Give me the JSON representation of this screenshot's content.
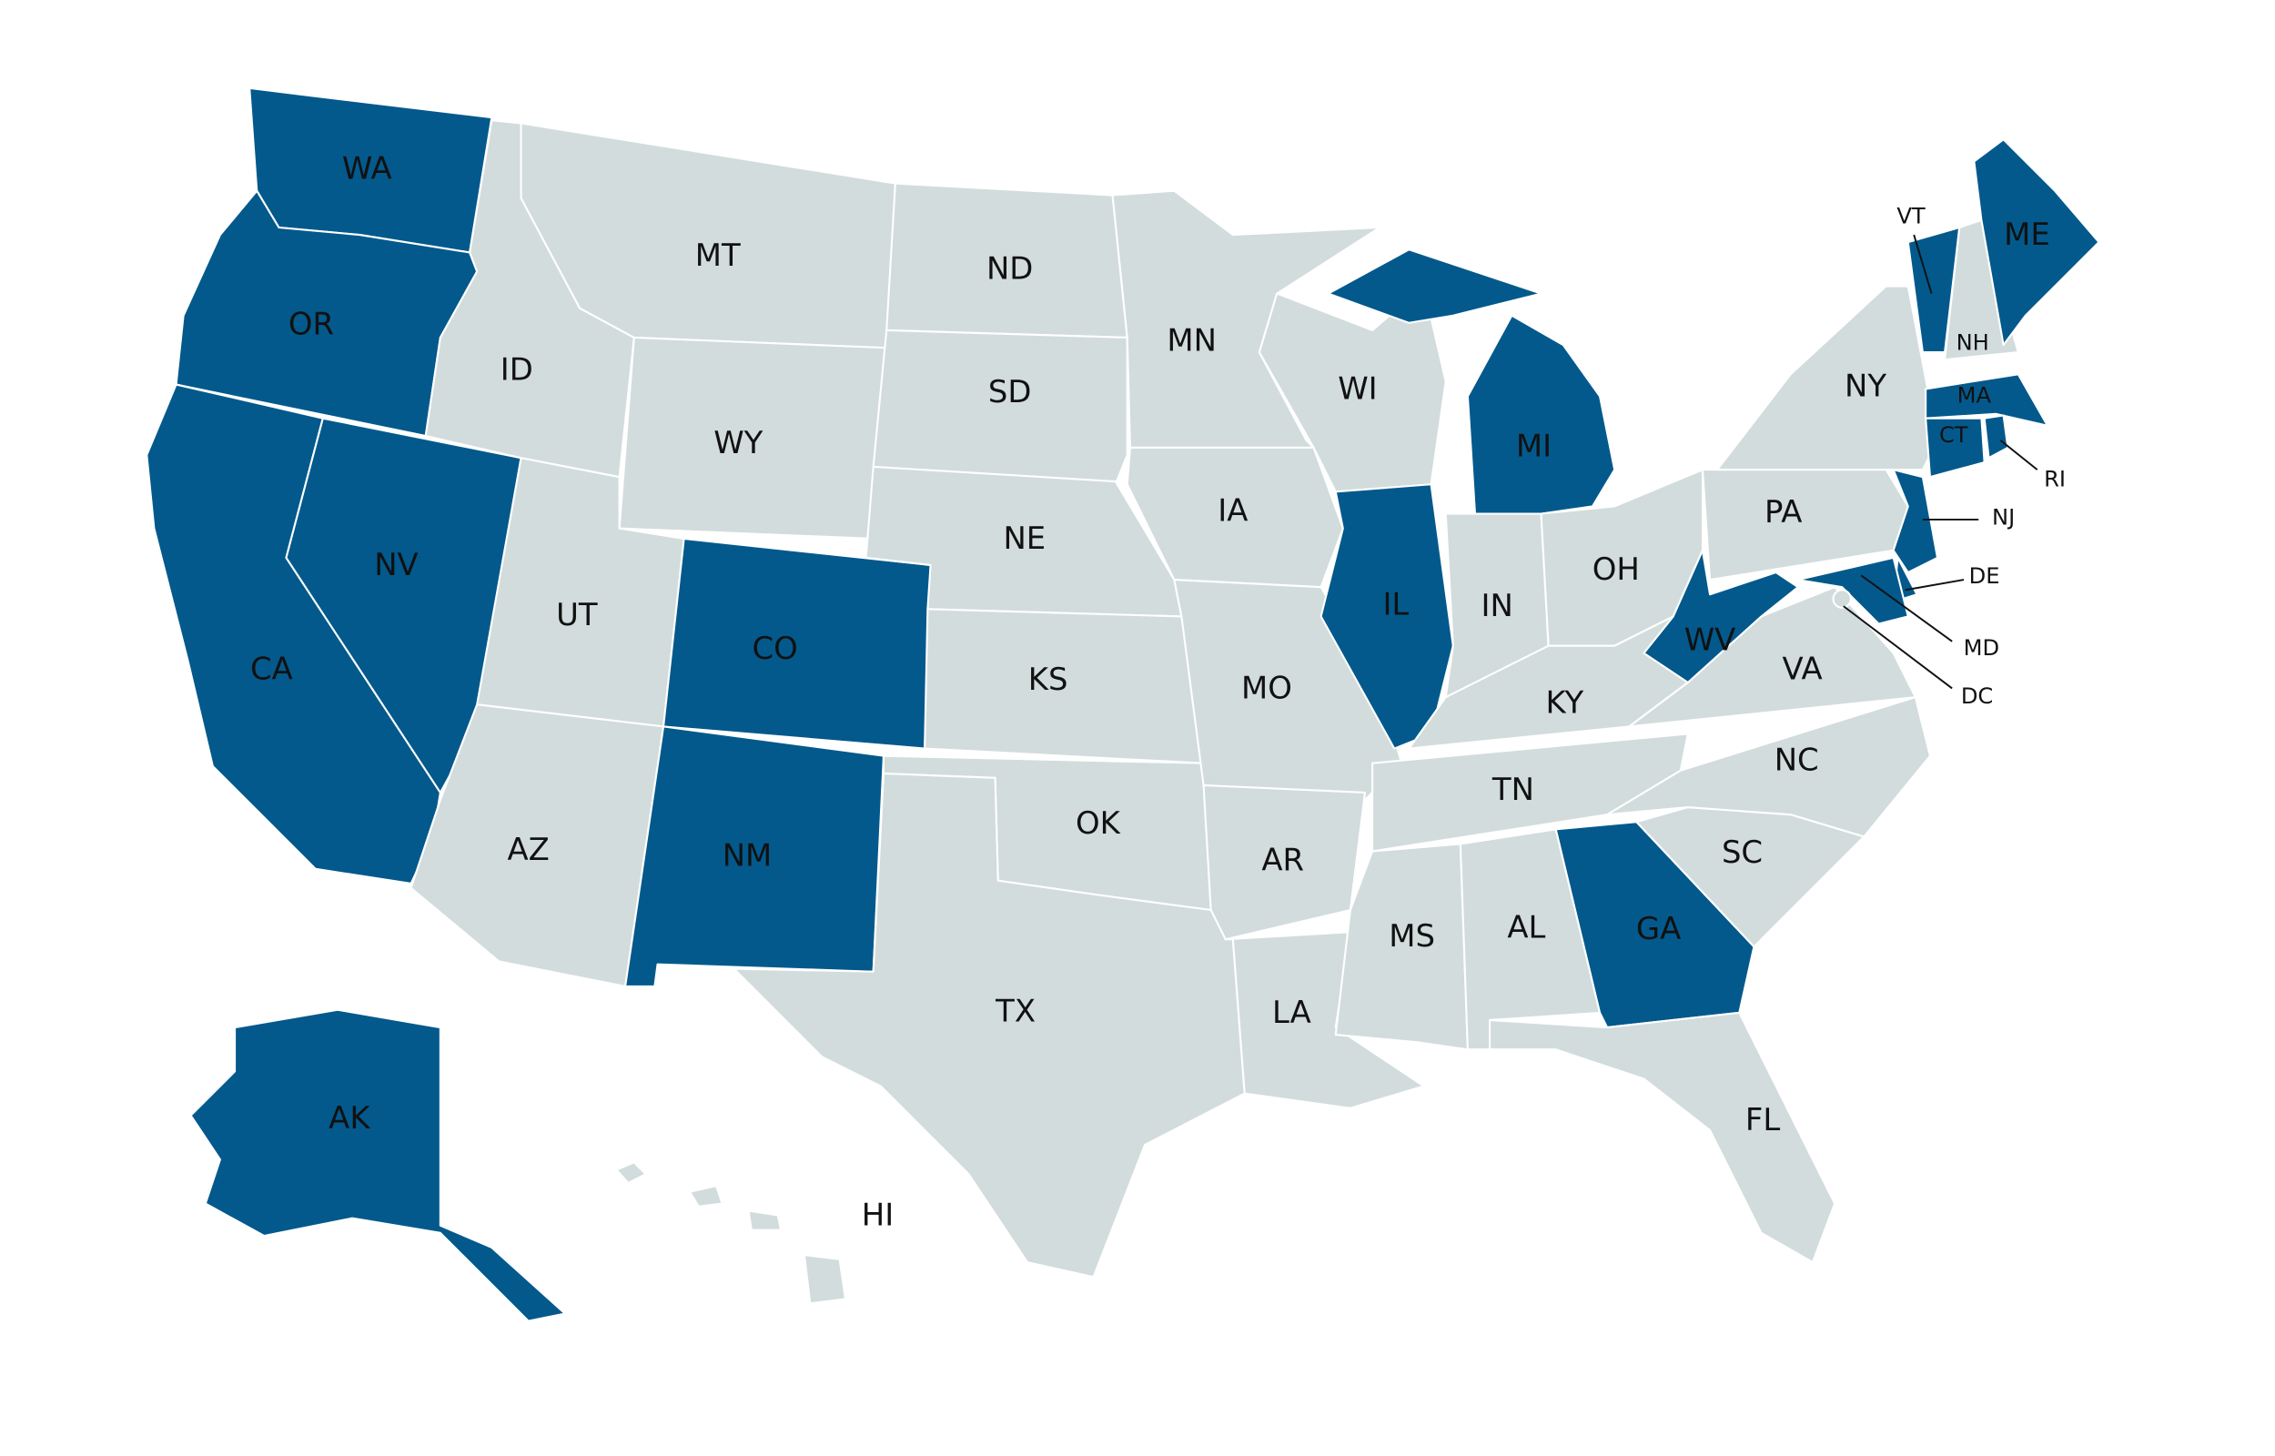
{
  "highlight_color": "#03598c",
  "base_color": "#d2dcdc",
  "states": [
    {
      "label": "WA",
      "highlighted": true
    },
    {
      "label": "OR",
      "highlighted": true
    },
    {
      "label": "CA",
      "highlighted": true
    },
    {
      "label": "NV",
      "highlighted": true
    },
    {
      "label": "ID",
      "highlighted": false
    },
    {
      "label": "MT",
      "highlighted": false
    },
    {
      "label": "WY",
      "highlighted": false
    },
    {
      "label": "UT",
      "highlighted": false
    },
    {
      "label": "CO",
      "highlighted": true
    },
    {
      "label": "AZ",
      "highlighted": false
    },
    {
      "label": "NM",
      "highlighted": true
    },
    {
      "label": "ND",
      "highlighted": false
    },
    {
      "label": "SD",
      "highlighted": false
    },
    {
      "label": "NE",
      "highlighted": false
    },
    {
      "label": "KS",
      "highlighted": false
    },
    {
      "label": "OK",
      "highlighted": false
    },
    {
      "label": "TX",
      "highlighted": false
    },
    {
      "label": "MN",
      "highlighted": false
    },
    {
      "label": "IA",
      "highlighted": false
    },
    {
      "label": "MO",
      "highlighted": false
    },
    {
      "label": "AR",
      "highlighted": false
    },
    {
      "label": "LA",
      "highlighted": false
    },
    {
      "label": "WI",
      "highlighted": false
    },
    {
      "label": "IL",
      "highlighted": true
    },
    {
      "label": "MI",
      "highlighted": true
    },
    {
      "label": "IN",
      "highlighted": false
    },
    {
      "label": "OH",
      "highlighted": false
    },
    {
      "label": "KY",
      "highlighted": false
    },
    {
      "label": "TN",
      "highlighted": false
    },
    {
      "label": "MS",
      "highlighted": false
    },
    {
      "label": "AL",
      "highlighted": false
    },
    {
      "label": "GA",
      "highlighted": true
    },
    {
      "label": "FL",
      "highlighted": false
    },
    {
      "label": "SC",
      "highlighted": false
    },
    {
      "label": "NC",
      "highlighted": false
    },
    {
      "label": "VA",
      "highlighted": false
    },
    {
      "label": "WV",
      "highlighted": true
    },
    {
      "label": "PA",
      "highlighted": false
    },
    {
      "label": "NY",
      "highlighted": false
    },
    {
      "label": "NJ",
      "highlighted": true
    },
    {
      "label": "DE",
      "highlighted": true
    },
    {
      "label": "MD",
      "highlighted": true
    },
    {
      "label": "DC",
      "highlighted": false
    },
    {
      "label": "VT",
      "highlighted": true
    },
    {
      "label": "NH",
      "highlighted": false
    },
    {
      "label": "ME",
      "highlighted": true
    },
    {
      "label": "MA",
      "highlighted": true
    },
    {
      "label": "CT",
      "highlighted": true
    },
    {
      "label": "RI",
      "highlighted": true
    },
    {
      "label": "AK",
      "highlighted": true
    },
    {
      "label": "HI",
      "highlighted": false
    }
  ]
}
